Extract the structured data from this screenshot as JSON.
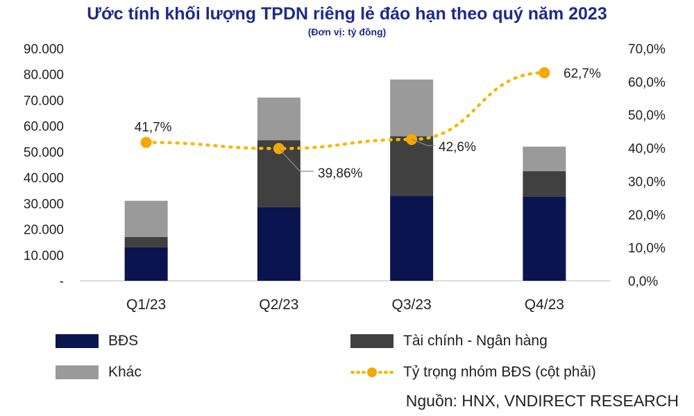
{
  "title": "Ước tính khối lượng TPDN riêng lẻ đáo hạn theo quý năm 2023",
  "subtitle": "(Đơn vị: tỷ đồng)",
  "source": "Nguồn: HNX, VNDIRECT RESEARCH",
  "colors": {
    "bds": "#0a1550",
    "taichinh": "#404040",
    "khac": "#9a9a9a",
    "line": "#f5b800",
    "marker": "#f5a800",
    "title": "#1f2a8c"
  },
  "chart_data": {
    "type": "bar",
    "stacked": true,
    "categories": [
      "Q1/23",
      "Q2/23",
      "Q3/23",
      "Q4/23"
    ],
    "series": [
      {
        "name": "BĐS",
        "values": [
          13000,
          28500,
          33000,
          32500
        ],
        "axis": "left"
      },
      {
        "name": "Tài chính - Ngân hàng",
        "values": [
          4000,
          26000,
          23000,
          10000
        ],
        "axis": "left"
      },
      {
        "name": "Khác",
        "values": [
          14000,
          16500,
          22000,
          9500
        ],
        "axis": "left"
      }
    ],
    "line_series": {
      "name": "Tỷ trọng nhóm BĐS (cột phải)",
      "values": [
        41.7,
        39.86,
        42.6,
        62.7
      ],
      "labels": [
        "41,7%",
        "39,86%",
        "42,6%",
        "62,7%"
      ],
      "axis": "right"
    },
    "y_left": {
      "min": 0,
      "max": 90000,
      "step": 10000,
      "tick_labels": [
        "-",
        "10.000",
        "20.000",
        "30.000",
        "40.000",
        "50.000",
        "60.000",
        "70.000",
        "80.000",
        "90.000"
      ]
    },
    "y_right": {
      "min": 0,
      "max": 70,
      "step": 10,
      "tick_labels": [
        "0,0%",
        "10,0%",
        "20,0%",
        "30,0%",
        "40,0%",
        "50,0%",
        "60,0%",
        "70,0%"
      ]
    },
    "grid": false,
    "legend_position": "bottom"
  }
}
